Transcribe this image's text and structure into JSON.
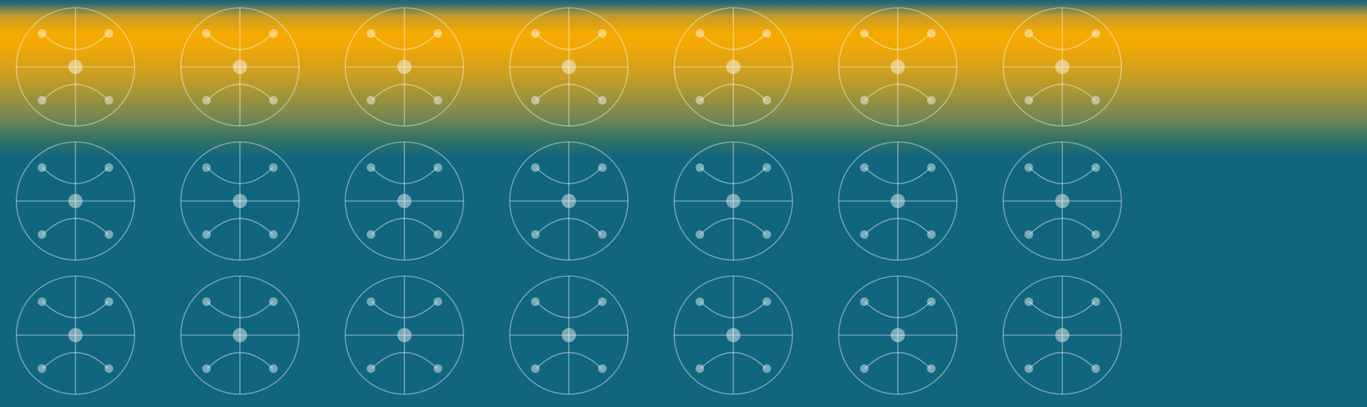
{
  "background": {
    "base_color": "#11657d",
    "band_color": "#f5aa00",
    "band_edge_color": "#11657d"
  },
  "pattern": {
    "motif_icon": "court-circle-icon",
    "rows": 3,
    "columns": 7,
    "stroke_color": "#ffffff",
    "stroke_opacity": 0.42,
    "dot_color": "#ffffff",
    "dot_opacity": 0.45
  }
}
